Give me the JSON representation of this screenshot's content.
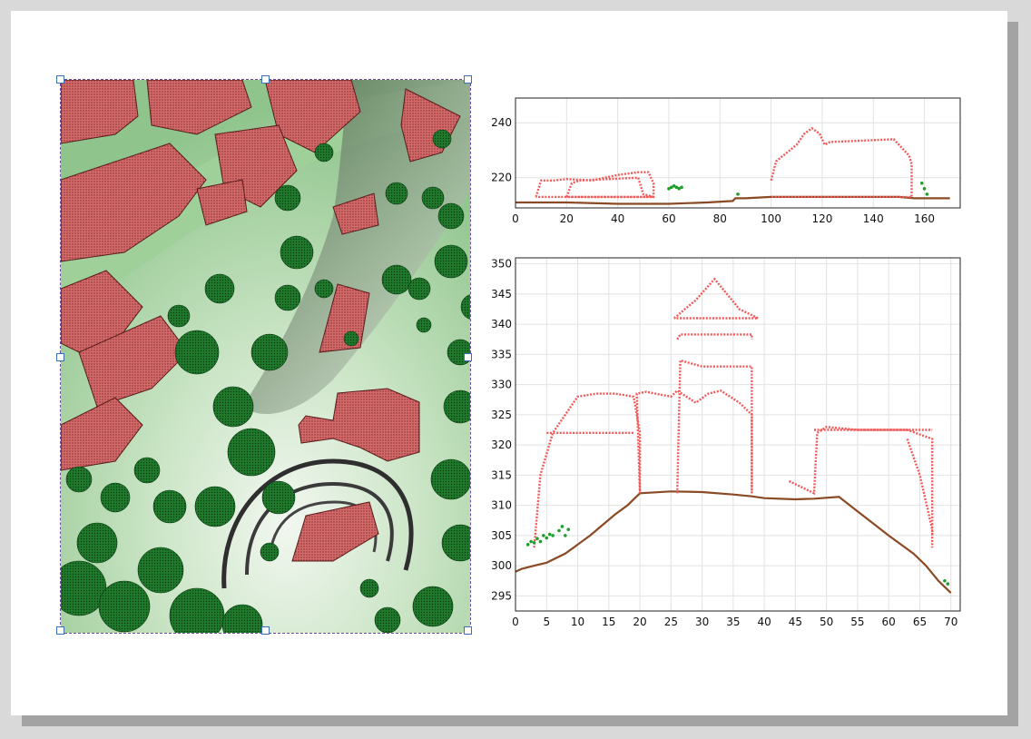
{
  "colors": {
    "building": "#f05a5a",
    "vegetation": "#1f9e2a",
    "terrain": "#8a4a24",
    "map_building": "#d46a6a",
    "map_tree": "#1f6b28",
    "map_ground": "#c9e4c4"
  },
  "map": {
    "type": "lidar-classified-point-cloud-map"
  },
  "chart_data": [
    {
      "type": "scatter",
      "title": "",
      "xlabel": "",
      "ylabel": "",
      "xlim": [
        0,
        174
      ],
      "ylim": [
        209,
        249
      ],
      "x_ticks": [
        0,
        20,
        40,
        60,
        80,
        100,
        120,
        140,
        160
      ],
      "y_ticks": [
        220,
        240
      ],
      "grid": true,
      "series": [
        {
          "kind": "terrain",
          "x": [
            0,
            20,
            40,
            60,
            75,
            85,
            86,
            90,
            100,
            120,
            140,
            150,
            156,
            170
          ],
          "y": [
            211,
            211,
            210.5,
            210.5,
            211,
            211.5,
            212.5,
            212.5,
            213,
            213,
            213,
            213,
            212.5,
            212.5
          ]
        },
        {
          "kind": "building",
          "outlines": [
            {
              "x": [
                8,
                10,
                15,
                20,
                30,
                40,
                48,
                52,
                54,
                54,
                8
              ],
              "y": [
                213,
                219,
                219,
                219.5,
                219,
                221,
                222,
                222,
                218,
                213,
                213
              ]
            },
            {
              "x": [
                20,
                22,
                25,
                48,
                50,
                54,
                54,
                20
              ],
              "y": [
                213,
                218,
                219,
                220,
                214,
                213,
                213,
                213
              ]
            },
            {
              "x": [
                100,
                102,
                106,
                110,
                113,
                116,
                119,
                121,
                123,
                148,
                154,
                155,
                155,
                100
              ],
              "y": [
                219,
                226,
                229,
                232,
                236,
                238,
                236,
                232,
                233,
                234,
                228,
                225,
                213,
                213
              ]
            }
          ]
        },
        {
          "kind": "vegetation",
          "x": [
            60,
            61,
            62,
            63,
            64,
            65,
            87,
            159,
            160,
            161
          ],
          "y": [
            216,
            216.5,
            217,
            216.5,
            216,
            216.5,
            214,
            218,
            216,
            214
          ]
        }
      ]
    },
    {
      "type": "scatter",
      "title": "",
      "xlabel": "",
      "ylabel": "",
      "xlim": [
        0,
        71.5
      ],
      "ylim": [
        292.5,
        351
      ],
      "x_ticks": [
        0,
        5,
        10,
        15,
        20,
        25,
        30,
        35,
        40,
        45,
        50,
        55,
        60,
        65,
        70
      ],
      "y_ticks": [
        295,
        300,
        305,
        310,
        315,
        320,
        325,
        330,
        335,
        340,
        345,
        350
      ],
      "grid": true,
      "series": [
        {
          "kind": "terrain",
          "x": [
            0,
            1,
            3,
            5,
            8,
            12,
            16,
            18,
            20,
            25,
            30,
            35,
            38,
            40,
            45,
            48,
            52,
            55,
            60,
            64,
            66,
            68,
            70
          ],
          "y": [
            299,
            299.5,
            300,
            300.5,
            302,
            305,
            308.5,
            310,
            312,
            312.3,
            312.2,
            311.8,
            311.5,
            311.2,
            311,
            311.1,
            311.4,
            309,
            305,
            302,
            300,
            297.5,
            295.5
          ]
        },
        {
          "kind": "building",
          "outlines": [
            {
              "x": [
                3,
                4,
                6,
                10,
                13,
                16,
                19,
                20,
                20
              ],
              "y": [
                303,
                315,
                322,
                328,
                328.5,
                328.5,
                328,
                322,
                312
              ]
            },
            {
              "x": [
                5,
                19
              ],
              "y": [
                322,
                322
              ]
            },
            {
              "x": [
                20,
                19.5,
                21,
                25,
                26,
                29,
                31,
                33,
                36,
                37,
                38,
                38
              ],
              "y": [
                312,
                328.5,
                328.8,
                328,
                329,
                327,
                328.5,
                329,
                327,
                326,
                325,
                312
              ]
            },
            {
              "x": [
                26,
                26.5,
                30,
                38,
                38
              ],
              "y": [
                312,
                334,
                333,
                333,
                312
              ]
            },
            {
              "x": [
                26,
                26.5,
                38,
                38
              ],
              "y": [
                337.5,
                338.3,
                338.3,
                337.5
              ]
            },
            {
              "x": [
                25.5,
                29,
                32,
                34,
                36,
                39,
                25.5
              ],
              "y": [
                341,
                344,
                347.5,
                345,
                342.5,
                341,
                341
              ]
            },
            {
              "x": [
                44,
                48,
                48.5,
                50,
                55,
                60,
                63,
                67,
                67
              ],
              "y": [
                314,
                312,
                322,
                323,
                322.5,
                322.5,
                322.5,
                321,
                305
              ]
            },
            {
              "x": [
                48,
                67
              ],
              "y": [
                322.5,
                322.5
              ]
            },
            {
              "x": [
                63,
                64,
                65,
                67,
                67
              ],
              "y": [
                321,
                318,
                315,
                306,
                303
              ]
            }
          ]
        },
        {
          "kind": "vegetation",
          "x": [
            2,
            2.5,
            3,
            3.5,
            4,
            4.5,
            5,
            5.5,
            6,
            7,
            7.5,
            8,
            8.5,
            69,
            69.5
          ],
          "y": [
            303.5,
            304,
            303.8,
            304.5,
            304,
            305,
            304.6,
            305.2,
            305,
            305.8,
            306.5,
            305,
            306,
            297.5,
            297
          ]
        }
      ]
    }
  ]
}
